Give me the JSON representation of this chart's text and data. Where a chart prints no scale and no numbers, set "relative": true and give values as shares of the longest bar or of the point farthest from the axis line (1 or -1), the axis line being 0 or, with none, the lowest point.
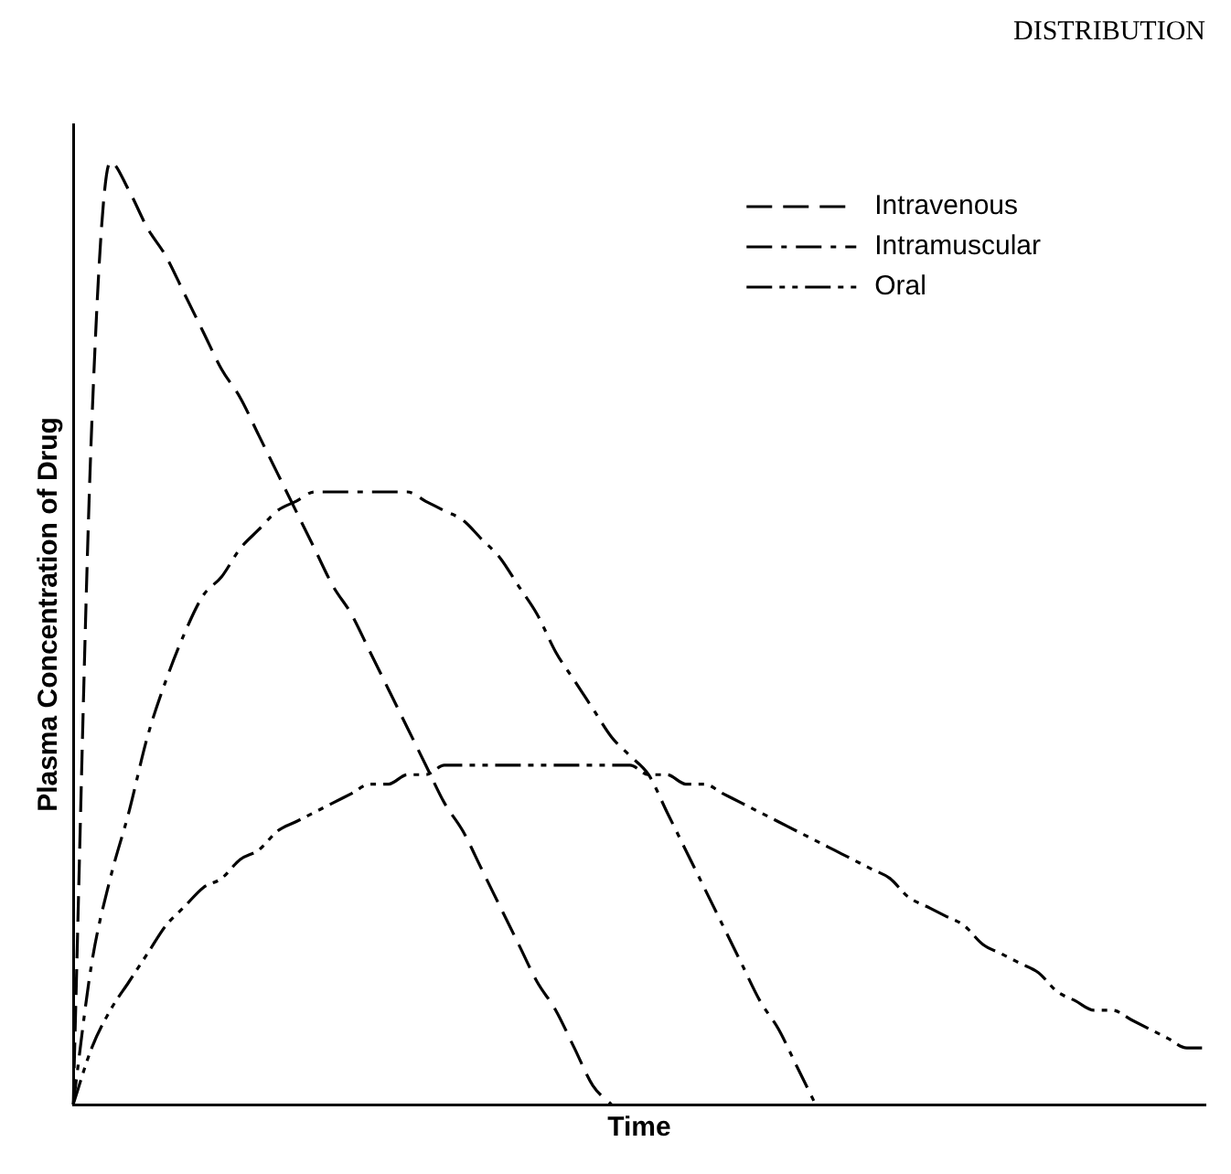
{
  "chart_data": {
    "type": "line",
    "relative": true,
    "xlabel": "Time",
    "ylabel": "Plasma Concentration of Drug",
    "annotations": [
      "DISTRIBUTION"
    ],
    "legend": "top right",
    "marker": "none",
    "grid": false,
    "categories": [
      null,
      null,
      null,
      null,
      null,
      null,
      null,
      null,
      null,
      null,
      null,
      null,
      null,
      null,
      null,
      null,
      null,
      null,
      null,
      null,
      null,
      null,
      null,
      null,
      null,
      null,
      null,
      null,
      null,
      null,
      null,
      null,
      null,
      null,
      null,
      null,
      null,
      null,
      null,
      null,
      null,
      null,
      null,
      null,
      null,
      null,
      null,
      null,
      null,
      null,
      null,
      null,
      null,
      null,
      null,
      null,
      null,
      null,
      null,
      null,
      null,
      null
    ],
    "series": [
      {
        "name": "Intravenous",
        "color": "#000000",
        "line_style": "dashed",
        "values": [
          0,
          0.72,
          1.0,
          0.97,
          0.93,
          0.9,
          0.86,
          0.82,
          0.78,
          0.75,
          0.71,
          0.67,
          0.63,
          0.59,
          0.55,
          0.52,
          0.48,
          0.44,
          0.4,
          0.36,
          0.32,
          0.29,
          0.25,
          0.21,
          0.17,
          0.13,
          0.1,
          0.06,
          0.02,
          0,
          null,
          null,
          null,
          null,
          null,
          null,
          null,
          null,
          null,
          null,
          null,
          null,
          null,
          null,
          null,
          null,
          null,
          null,
          null,
          null,
          null,
          null,
          null,
          null,
          null,
          null,
          null,
          null,
          null,
          null,
          null,
          null
        ]
      },
      {
        "name": "Intramuscular",
        "color": "#000000",
        "line_style": "dashed",
        "values": [
          0,
          0.15,
          0.24,
          0.31,
          0.39,
          0.45,
          0.5,
          0.54,
          0.56,
          0.59,
          0.61,
          0.63,
          0.64,
          0.65,
          0.65,
          0.65,
          0.65,
          0.65,
          0.65,
          0.64,
          0.63,
          0.62,
          0.6,
          0.58,
          0.55,
          0.52,
          0.48,
          0.45,
          0.42,
          0.39,
          0.37,
          0.35,
          0.31,
          0.27,
          0.23,
          0.19,
          0.15,
          0.11,
          0.08,
          0.04,
          0,
          null,
          null,
          null,
          null,
          null,
          null,
          null,
          null,
          null,
          null,
          null,
          null,
          null,
          null,
          null,
          null,
          null,
          null,
          null,
          null,
          null
        ]
      },
      {
        "name": "Oral",
        "color": "#000000",
        "line_style": "dashed",
        "values": [
          0,
          0.06,
          0.1,
          0.13,
          0.16,
          0.19,
          0.21,
          0.23,
          0.24,
          0.26,
          0.27,
          0.29,
          0.3,
          0.31,
          0.32,
          0.33,
          0.34,
          0.34,
          0.35,
          0.35,
          0.36,
          0.36,
          0.36,
          0.36,
          0.36,
          0.36,
          0.36,
          0.36,
          0.36,
          0.36,
          0.36,
          0.35,
          0.35,
          0.34,
          0.34,
          0.33,
          0.32,
          0.31,
          0.3,
          0.29,
          0.28,
          0.27,
          0.26,
          0.25,
          0.24,
          0.22,
          0.21,
          0.2,
          0.19,
          0.17,
          0.16,
          0.15,
          0.14,
          0.12,
          0.11,
          0.1,
          0.1,
          0.09,
          0.08,
          0.07,
          0.06,
          0.06
        ]
      }
    ]
  }
}
